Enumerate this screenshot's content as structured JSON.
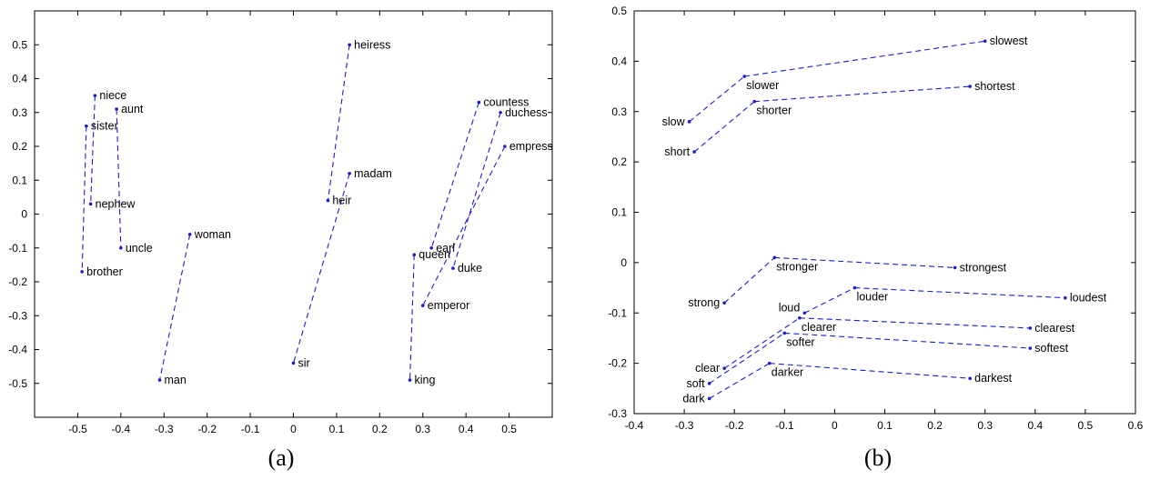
{
  "colors": {
    "line": "#1c1ccf",
    "point": "#1c1ccf",
    "axis": "#000000"
  },
  "chart_data": [
    {
      "type": "scatter",
      "caption": "(a)",
      "title": "",
      "xlabel": "",
      "ylabel": "",
      "xlim": [
        -0.6,
        0.6
      ],
      "ylim": [
        -0.6,
        0.6
      ],
      "xticks": [
        -0.5,
        -0.4,
        -0.3,
        -0.2,
        -0.1,
        0,
        0.1,
        0.2,
        0.3,
        0.4,
        0.5
      ],
      "xtick_labels": [
        "-0.5",
        "-0.4",
        "-0.3",
        "-0.2",
        "-0.1",
        "0",
        "0.1",
        "0.2",
        "0.3",
        "0.4",
        "0.5"
      ],
      "yticks": [
        -0.5,
        -0.4,
        -0.3,
        -0.2,
        -0.1,
        0,
        0.1,
        0.2,
        0.3,
        0.4,
        0.5
      ],
      "ytick_labels": [
        "-0.5",
        "-0.4",
        "-0.3",
        "-0.2",
        "-0.1",
        "0",
        "0.1",
        "0.2",
        "0.3",
        "0.4",
        "0.5"
      ],
      "grid": false,
      "points": [
        {
          "label": "heiress",
          "x": 0.13,
          "y": 0.5
        },
        {
          "label": "niece",
          "x": -0.46,
          "y": 0.35
        },
        {
          "label": "aunt",
          "x": -0.41,
          "y": 0.31
        },
        {
          "label": "sister",
          "x": -0.48,
          "y": 0.26
        },
        {
          "label": "nephew",
          "x": -0.47,
          "y": 0.03
        },
        {
          "label": "uncle",
          "x": -0.4,
          "y": -0.1
        },
        {
          "label": "brother",
          "x": -0.49,
          "y": -0.17
        },
        {
          "label": "woman",
          "x": -0.24,
          "y": -0.06
        },
        {
          "label": "man",
          "x": -0.31,
          "y": -0.49
        },
        {
          "label": "madam",
          "x": 0.13,
          "y": 0.12
        },
        {
          "label": "heir",
          "x": 0.08,
          "y": 0.04
        },
        {
          "label": "sir",
          "x": 0.0,
          "y": -0.44
        },
        {
          "label": "countess",
          "x": 0.43,
          "y": 0.33
        },
        {
          "label": "duchess",
          "x": 0.48,
          "y": 0.3
        },
        {
          "label": "empress",
          "x": 0.49,
          "y": 0.2
        },
        {
          "label": "earl",
          "x": 0.32,
          "y": -0.1
        },
        {
          "label": "queen",
          "x": 0.28,
          "y": -0.12
        },
        {
          "label": "duke",
          "x": 0.37,
          "y": -0.16
        },
        {
          "label": "emperor",
          "x": 0.3,
          "y": -0.27
        },
        {
          "label": "king",
          "x": 0.27,
          "y": -0.49
        }
      ],
      "pairs": [
        [
          "sister",
          "brother"
        ],
        [
          "niece",
          "nephew"
        ],
        [
          "aunt",
          "uncle"
        ],
        [
          "woman",
          "man"
        ],
        [
          "heiress",
          "heir"
        ],
        [
          "madam",
          "sir"
        ],
        [
          "countess",
          "earl"
        ],
        [
          "duchess",
          "duke"
        ],
        [
          "empress",
          "emperor"
        ],
        [
          "queen",
          "king"
        ]
      ]
    },
    {
      "type": "scatter",
      "caption": "(b)",
      "title": "",
      "xlabel": "",
      "ylabel": "",
      "xlim": [
        -0.4,
        0.6
      ],
      "ylim": [
        -0.3,
        0.5
      ],
      "xticks": [
        -0.4,
        -0.3,
        -0.2,
        -0.1,
        0,
        0.1,
        0.2,
        0.3,
        0.4,
        0.5,
        0.6
      ],
      "xtick_labels": [
        "-0.4",
        "-0.3",
        "-0.2",
        "-0.1",
        "0",
        "0.1",
        "0.2",
        "0.3",
        "0.4",
        "0.5",
        "0.6"
      ],
      "yticks": [
        -0.3,
        -0.2,
        -0.1,
        0,
        0.1,
        0.2,
        0.3,
        0.4,
        0.5
      ],
      "ytick_labels": [
        "-0.3",
        "-0.2",
        "-0.1",
        "0",
        "0.1",
        "0.2",
        "0.3",
        "0.4",
        "0.5"
      ],
      "grid": false,
      "points": [
        {
          "label": "slow",
          "x": -0.29,
          "y": 0.28
        },
        {
          "label": "slower",
          "x": -0.18,
          "y": 0.37
        },
        {
          "label": "slowest",
          "x": 0.3,
          "y": 0.44
        },
        {
          "label": "short",
          "x": -0.28,
          "y": 0.22
        },
        {
          "label": "shorter",
          "x": -0.16,
          "y": 0.32
        },
        {
          "label": "shortest",
          "x": 0.27,
          "y": 0.35
        },
        {
          "label": "strong",
          "x": -0.22,
          "y": -0.08
        },
        {
          "label": "stronger",
          "x": -0.12,
          "y": 0.01
        },
        {
          "label": "strongest",
          "x": 0.24,
          "y": -0.01
        },
        {
          "label": "loud",
          "x": -0.06,
          "y": -0.1
        },
        {
          "label": "louder",
          "x": 0.04,
          "y": -0.05
        },
        {
          "label": "loudest",
          "x": 0.46,
          "y": -0.07
        },
        {
          "label": "clear",
          "x": -0.22,
          "y": -0.21
        },
        {
          "label": "clearer",
          "x": -0.07,
          "y": -0.11
        },
        {
          "label": "clearest",
          "x": 0.39,
          "y": -0.13
        },
        {
          "label": "soft",
          "x": -0.25,
          "y": -0.24
        },
        {
          "label": "softer",
          "x": -0.1,
          "y": -0.14
        },
        {
          "label": "softest",
          "x": 0.39,
          "y": -0.17
        },
        {
          "label": "dark",
          "x": -0.25,
          "y": -0.27
        },
        {
          "label": "darker",
          "x": -0.13,
          "y": -0.2
        },
        {
          "label": "darkest",
          "x": 0.27,
          "y": -0.23
        }
      ],
      "pairs": [
        [
          "slow",
          "slower"
        ],
        [
          "slower",
          "slowest"
        ],
        [
          "short",
          "shorter"
        ],
        [
          "shorter",
          "shortest"
        ],
        [
          "strong",
          "stronger"
        ],
        [
          "stronger",
          "strongest"
        ],
        [
          "loud",
          "louder"
        ],
        [
          "louder",
          "loudest"
        ],
        [
          "clear",
          "clearer"
        ],
        [
          "clearer",
          "clearest"
        ],
        [
          "soft",
          "softer"
        ],
        [
          "softer",
          "softest"
        ],
        [
          "dark",
          "darker"
        ],
        [
          "darker",
          "darkest"
        ]
      ]
    }
  ]
}
